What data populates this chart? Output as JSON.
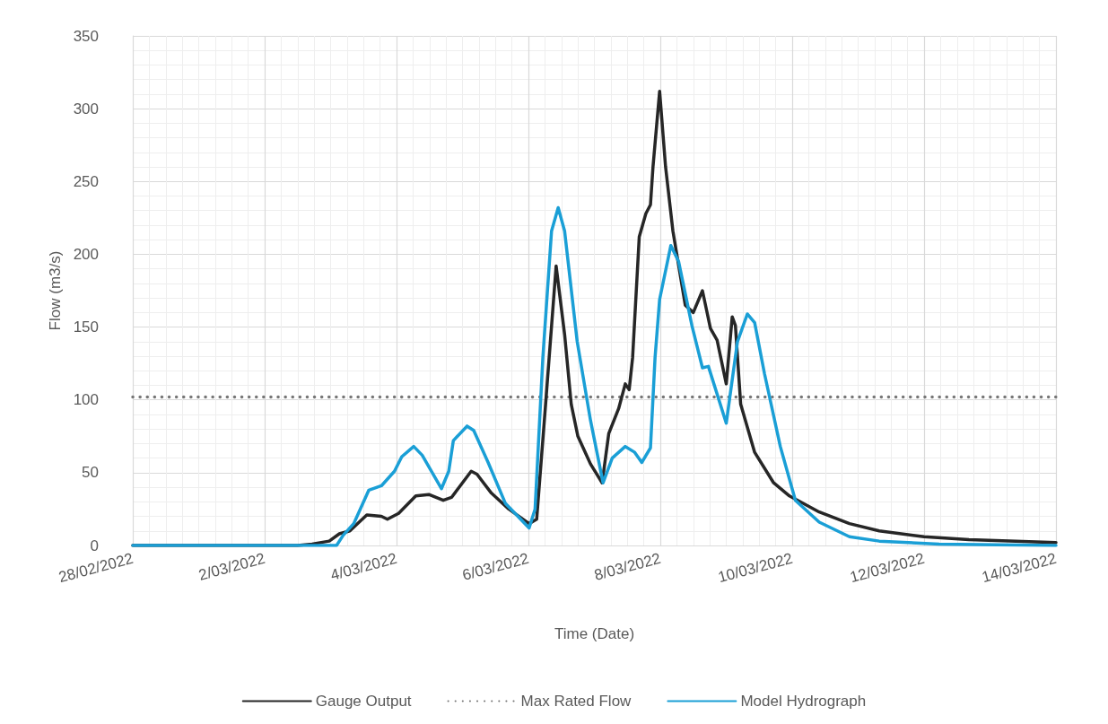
{
  "chart_data": {
    "type": "line",
    "xlabel": "Time (Date)",
    "ylabel": "Flow (m3/s)",
    "xlim": [
      "2022-02-28",
      "2022-03-14"
    ],
    "xticks": [
      {
        "value": "2022-02-28",
        "label": "28/02/2022"
      },
      {
        "value": "2022-03-02",
        "label": "2/03/2022"
      },
      {
        "value": "2022-03-04",
        "label": "4/03/2022"
      },
      {
        "value": "2022-03-06",
        "label": "6/03/2022"
      },
      {
        "value": "2022-03-08",
        "label": "8/03/2022"
      },
      {
        "value": "2022-03-10",
        "label": "10/03/2022"
      },
      {
        "value": "2022-03-12",
        "label": "12/03/2022"
      },
      {
        "value": "2022-03-14",
        "label": "14/03/2022"
      }
    ],
    "ylim": [
      0,
      350
    ],
    "yticks": [
      0,
      50,
      100,
      150,
      200,
      250,
      300,
      350
    ],
    "grid": true,
    "legend": "bottom",
    "marker": "none",
    "series": [
      {
        "name": "Gauge Output",
        "color": "#262626",
        "line_style": "solid",
        "x": [
          "2022-02-28T00:00",
          "2022-03-02T12:00",
          "2022-03-02T17:15",
          "2022-03-02T23:30",
          "2022-03-03T03:10",
          "2022-03-03T07:00",
          "2022-03-03T13:10",
          "2022-03-03T18:30",
          "2022-03-03T20:40",
          "2022-03-04T00:45",
          "2022-03-04T07:00",
          "2022-03-04T11:45",
          "2022-03-04T17:00",
          "2022-03-04T20:00",
          "2022-03-05T03:10",
          "2022-03-05T05:15",
          "2022-03-05T10:30",
          "2022-03-05T16:50",
          "2022-03-06T00:15",
          "2022-03-06T03:00",
          "2022-03-06T06:15",
          "2022-03-06T10:05",
          "2022-03-06T13:10",
          "2022-03-06T15:35",
          "2022-03-06T18:00",
          "2022-03-06T22:35",
          "2022-03-07T02:50",
          "2022-03-07T05:15",
          "2022-03-07T08:50",
          "2022-03-07T11:15",
          "2022-03-07T12:40",
          "2022-03-07T13:55",
          "2022-03-07T16:20",
          "2022-03-07T18:45",
          "2022-03-07T20:25",
          "2022-03-07T21:20",
          "2022-03-07T23:45",
          "2022-03-08T01:55",
          "2022-03-08T04:35",
          "2022-03-08T09:05",
          "2022-03-08T12:00",
          "2022-03-08T15:20",
          "2022-03-08T18:15",
          "2022-03-08T20:40",
          "2022-03-09T00:00",
          "2022-03-09T02:10",
          "2022-03-09T03:20",
          "2022-03-09T05:15",
          "2022-03-09T10:20",
          "2022-03-09T17:15",
          "2022-03-09T23:00",
          "2022-03-10T09:50",
          "2022-03-10T20:50",
          "2022-03-11T07:40",
          "2022-03-12T00:00",
          "2022-03-12T16:20",
          "2022-03-14T00:00"
        ],
        "values": [
          0,
          0,
          1,
          3,
          8,
          10,
          21,
          20,
          18,
          22,
          34,
          35,
          31,
          33,
          51,
          49,
          36,
          25,
          15,
          18,
          97,
          192,
          145,
          97,
          75,
          56,
          43,
          77,
          94,
          111,
          107,
          129,
          212,
          228,
          234,
          260,
          312,
          260,
          216,
          165,
          160,
          175,
          149,
          141,
          111,
          157,
          151,
          97,
          64,
          43,
          34,
          23,
          15,
          10,
          6,
          4,
          2
        ]
      },
      {
        "name": "Max Rated Flow",
        "color": "#767676",
        "line_style": "dotted",
        "x": [
          "2022-02-28T00:00",
          "2022-03-14T00:00"
        ],
        "values": [
          102,
          102
        ]
      },
      {
        "name": "Model Hydrograph",
        "color": "#1a9fd6",
        "line_style": "solid",
        "x": [
          "2022-02-28T00:00",
          "2022-03-03T02:10",
          "2022-03-03T04:35",
          "2022-03-03T08:25",
          "2022-03-03T13:55",
          "2022-03-03T18:30",
          "2022-03-03T23:15",
          "2022-03-04T01:55",
          "2022-03-04T06:15",
          "2022-03-04T09:20",
          "2022-03-04T16:20",
          "2022-03-04T19:00",
          "2022-03-04T20:40",
          "2022-03-05T01:40",
          "2022-03-05T04:05",
          "2022-03-05T09:20",
          "2022-03-05T15:35",
          "2022-03-06T00:15",
          "2022-03-06T02:25",
          "2022-03-06T05:15",
          "2022-03-06T08:25",
          "2022-03-06T10:50",
          "2022-03-06T13:10",
          "2022-03-06T17:45",
          "2022-03-06T22:35",
          "2022-03-07T03:10",
          "2022-03-07T06:30",
          "2022-03-07T11:15",
          "2022-03-07T14:40",
          "2022-03-07T17:15",
          "2022-03-07T20:25",
          "2022-03-07T22:05",
          "2022-03-07T23:45",
          "2022-03-08T03:50",
          "2022-03-08T06:40",
          "2022-03-08T11:30",
          "2022-03-08T15:20",
          "2022-03-08T17:30",
          "2022-03-09T00:00",
          "2022-03-09T04:05",
          "2022-03-09T07:40",
          "2022-03-09T10:20",
          "2022-03-09T13:55",
          "2022-03-09T19:40",
          "2022-03-10T01:10",
          "2022-03-10T09:50",
          "2022-03-10T20:50",
          "2022-03-11T07:40",
          "2022-03-12T05:30",
          "2022-03-14T00:00"
        ],
        "values": [
          0,
          0,
          7,
          15,
          38,
          41,
          51,
          61,
          68,
          62,
          39,
          51,
          72,
          82,
          79,
          57,
          29,
          12,
          25,
          129,
          216,
          232,
          216,
          140,
          86,
          43,
          60,
          68,
          64,
          57,
          67,
          129,
          169,
          206,
          195,
          151,
          122,
          123,
          84,
          140,
          159,
          153,
          118,
          68,
          31,
          16,
          6,
          3,
          1,
          0
        ]
      }
    ]
  }
}
